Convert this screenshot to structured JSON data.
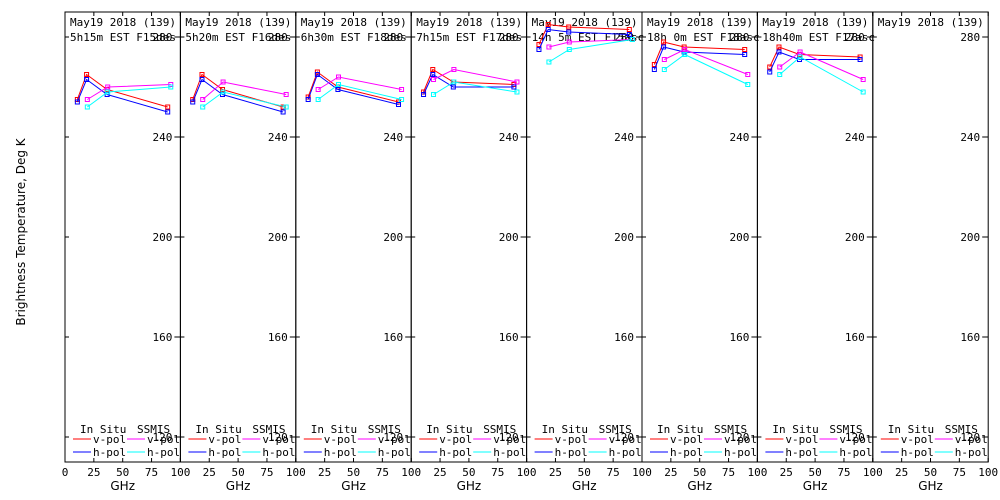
{
  "chart_data": {
    "type": "line",
    "ylabel": "Brightness Temperature, Deg K",
    "xlabel": "GHz",
    "xlim": [
      0,
      100
    ],
    "ylim": [
      110,
      290
    ],
    "xticks": [
      0,
      25,
      50,
      75,
      100
    ],
    "yticks": [
      120,
      160,
      200,
      240,
      280
    ],
    "legend": {
      "insitu_title": "In Situ",
      "ssmis_title": "SSMIS",
      "vpol": "v-pol",
      "hpol": "h-pol"
    },
    "colors": {
      "insitu_v": "#ff0000",
      "insitu_h": "#0000ff",
      "ssmis_v": "#ff00ff",
      "ssmis_h": "#00ffff"
    },
    "panels": [
      {
        "date": "May19 2018 (139)",
        "time": "5h15m EST F15des",
        "insitu_x": [
          10.7,
          18.7,
          36.5,
          89
        ],
        "insitu_v": [
          255,
          265,
          259,
          252
        ],
        "insitu_h": [
          254,
          263,
          257,
          250
        ],
        "ssmis_x": [
          19.35,
          37,
          91.655
        ],
        "ssmis_v": [
          255,
          260,
          261
        ],
        "ssmis_h": [
          252,
          258,
          260
        ]
      },
      {
        "date": "May19 2018 (139)",
        "time": "5h20m EST F16des",
        "insitu_x": [
          10.7,
          18.7,
          36.5,
          89
        ],
        "insitu_v": [
          255,
          265,
          259,
          252
        ],
        "insitu_h": [
          254,
          263,
          257,
          250
        ],
        "ssmis_x": [
          19.35,
          37,
          91.655
        ],
        "ssmis_v": [
          255,
          262,
          257
        ],
        "ssmis_h": [
          252,
          258,
          252
        ]
      },
      {
        "date": "May19 2018 (139)",
        "time": "6h30m EST F18des",
        "insitu_x": [
          10.7,
          18.7,
          36.5,
          89
        ],
        "insitu_v": [
          256,
          266,
          260,
          254
        ],
        "insitu_h": [
          255,
          265,
          259,
          253
        ],
        "ssmis_x": [
          19.35,
          37,
          91.655
        ],
        "ssmis_v": [
          259,
          264,
          259
        ],
        "ssmis_h": [
          255,
          261,
          255
        ]
      },
      {
        "date": "May19 2018 (139)",
        "time": "7h15m EST F17des",
        "insitu_x": [
          10.7,
          18.7,
          36.5,
          89
        ],
        "insitu_v": [
          258,
          267,
          262,
          261
        ],
        "insitu_h": [
          257,
          265,
          260,
          260
        ],
        "ssmis_x": [
          19.35,
          37,
          91.655
        ],
        "ssmis_v": [
          263,
          267,
          262
        ],
        "ssmis_h": [
          257,
          262,
          258
        ]
      },
      {
        "date": "May19 2018 (139)",
        "time": "14h 5m EST F15asc",
        "insitu_x": [
          10.7,
          18.7,
          36.5,
          89
        ],
        "insitu_v": [
          277,
          285,
          284,
          283
        ],
        "insitu_h": [
          275,
          283,
          282,
          281
        ],
        "ssmis_x": [
          19.35,
          37,
          91.655
        ],
        "ssmis_v": [
          276,
          278,
          279
        ],
        "ssmis_h": [
          270,
          275,
          279
        ]
      },
      {
        "date": "May19 2018 (139)",
        "time": "18h 0m EST F18asc",
        "insitu_x": [
          10.7,
          18.7,
          36.5,
          89
        ],
        "insitu_v": [
          269,
          278,
          276,
          275
        ],
        "insitu_h": [
          267,
          276,
          274,
          273
        ],
        "ssmis_x": [
          19.35,
          37,
          91.655
        ],
        "ssmis_v": [
          271,
          275,
          265
        ],
        "ssmis_h": [
          267,
          273,
          261
        ]
      },
      {
        "date": "May19 2018 (139)",
        "time": "18h40m EST F17asc",
        "insitu_x": [
          10.7,
          18.7,
          36.5,
          89
        ],
        "insitu_v": [
          268,
          276,
          273,
          272
        ],
        "insitu_h": [
          266,
          274,
          271,
          271
        ],
        "ssmis_x": [
          19.35,
          37,
          91.655
        ],
        "ssmis_v": [
          268,
          274,
          263
        ],
        "ssmis_h": [
          265,
          272,
          258
        ]
      },
      {
        "date": "May19 2018 (139)",
        "time": "",
        "insitu_x": [],
        "insitu_v": [],
        "insitu_h": [],
        "ssmis_x": [],
        "ssmis_v": [],
        "ssmis_h": []
      }
    ]
  }
}
